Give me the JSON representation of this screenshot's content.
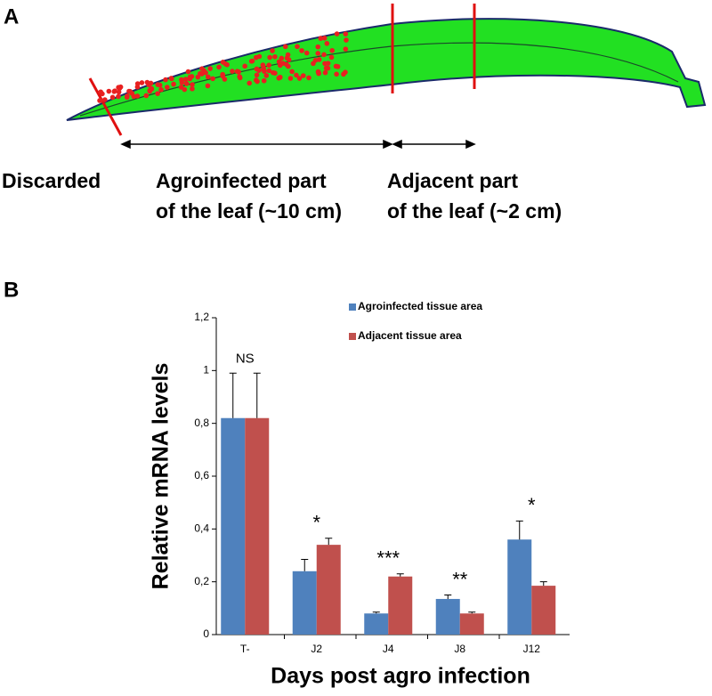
{
  "panel_labels": [
    "A",
    "B"
  ],
  "panel_a": {
    "labels": {
      "discarded": "Discarded",
      "agro_line1": "Agroinfected part",
      "agro_line2": "of the leaf (~10 cm)",
      "adj_line1": "Adjacent part",
      "adj_line2": "of the leaf (~2 cm)"
    }
  },
  "chart_data": {
    "type": "bar",
    "x_label": "Days post agro infection",
    "y_label": "Relative mRNA levels",
    "categories": [
      "T-",
      "J2",
      "J4",
      "J8",
      "J12"
    ],
    "annotations": [
      "NS",
      "*",
      "***",
      "**",
      "*"
    ],
    "series": [
      {
        "name": "Agroinfected tissue area",
        "color": "#4f81bd",
        "values": [
          0.82,
          0.24,
          0.08,
          0.135,
          0.36
        ],
        "errors": [
          0.17,
          0.045,
          0.005,
          0.015,
          0.07
        ]
      },
      {
        "name": "Adjacent tissue area",
        "color": "#c0504d",
        "values": [
          0.82,
          0.34,
          0.22,
          0.08,
          0.185
        ],
        "errors": [
          0.17,
          0.025,
          0.01,
          0.005,
          0.015
        ]
      }
    ],
    "ylim": [
      0,
      1.2
    ],
    "yticks": [
      0,
      {
        "value": 0.2,
        "label": "0,2"
      },
      {
        "value": 0.4,
        "label": "0,4"
      },
      {
        "value": 0.6,
        "label": "0,6"
      },
      {
        "value": 0.8,
        "label": "0,8"
      },
      1,
      {
        "value": 1.2,
        "label": "1,2"
      }
    ]
  }
}
